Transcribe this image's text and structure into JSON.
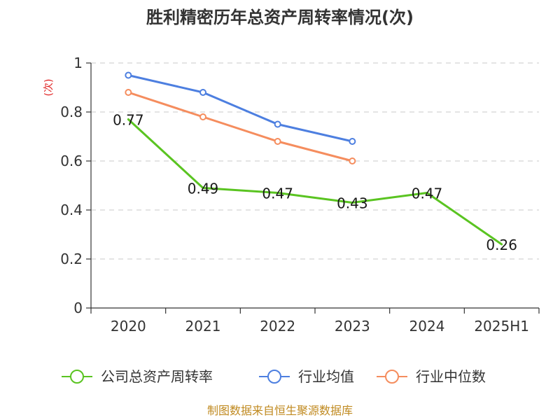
{
  "chart_data": {
    "type": "line",
    "title": "胜利精密历年总资产周转率情况(次)",
    "ylabel": "(次)",
    "categories": [
      "2020",
      "2021",
      "2022",
      "2023",
      "2024",
      "2025H1"
    ],
    "ylim": [
      0,
      1
    ],
    "yticks": [
      "0",
      "0.2",
      "0.4",
      "0.6",
      "0.8",
      "1"
    ],
    "grid": true,
    "legend_position": "bottom",
    "series": [
      {
        "name": "公司总资产周转率",
        "color": "#5ac421",
        "values": [
          0.77,
          0.49,
          0.47,
          0.43,
          0.47,
          0.26
        ],
        "labels": [
          "0.77",
          "0.49",
          "0.47",
          "0.43",
          "0.47",
          "0.26"
        ],
        "show_markers": false
      },
      {
        "name": "行业均值",
        "color": "#4d7fe0",
        "values": [
          0.95,
          0.88,
          0.75,
          0.68,
          null,
          null
        ],
        "show_markers": true
      },
      {
        "name": "行业中位数",
        "color": "#f58d5e",
        "values": [
          0.88,
          0.78,
          0.68,
          0.6,
          null,
          null
        ],
        "show_markers": true
      }
    ]
  },
  "source": "制图数据来自恒生聚源数据库"
}
